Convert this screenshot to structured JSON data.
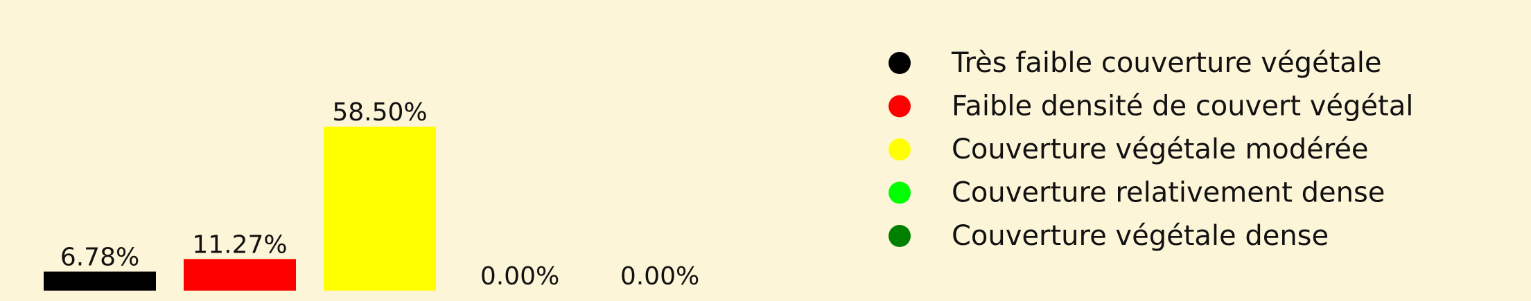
{
  "chart_data": {
    "type": "bar",
    "categories": [
      "Très faible couverture végétale",
      "Faible densité de couvert végétal",
      "Couverture végétale modérée",
      "Couverture relativement dense",
      "Couverture végétale dense"
    ],
    "values": [
      6.78,
      11.27,
      58.5,
      0.0,
      0.0
    ],
    "value_labels": [
      "6.78%",
      "11.27%",
      "58.50%",
      "0.00%",
      "0.00%"
    ],
    "colors": [
      "#000000",
      "#ff0000",
      "#ffff00",
      "#00ff00",
      "#008000"
    ],
    "ylim": [
      0,
      58.5
    ],
    "grid": false,
    "axes_visible": false,
    "legend_position": "right"
  }
}
